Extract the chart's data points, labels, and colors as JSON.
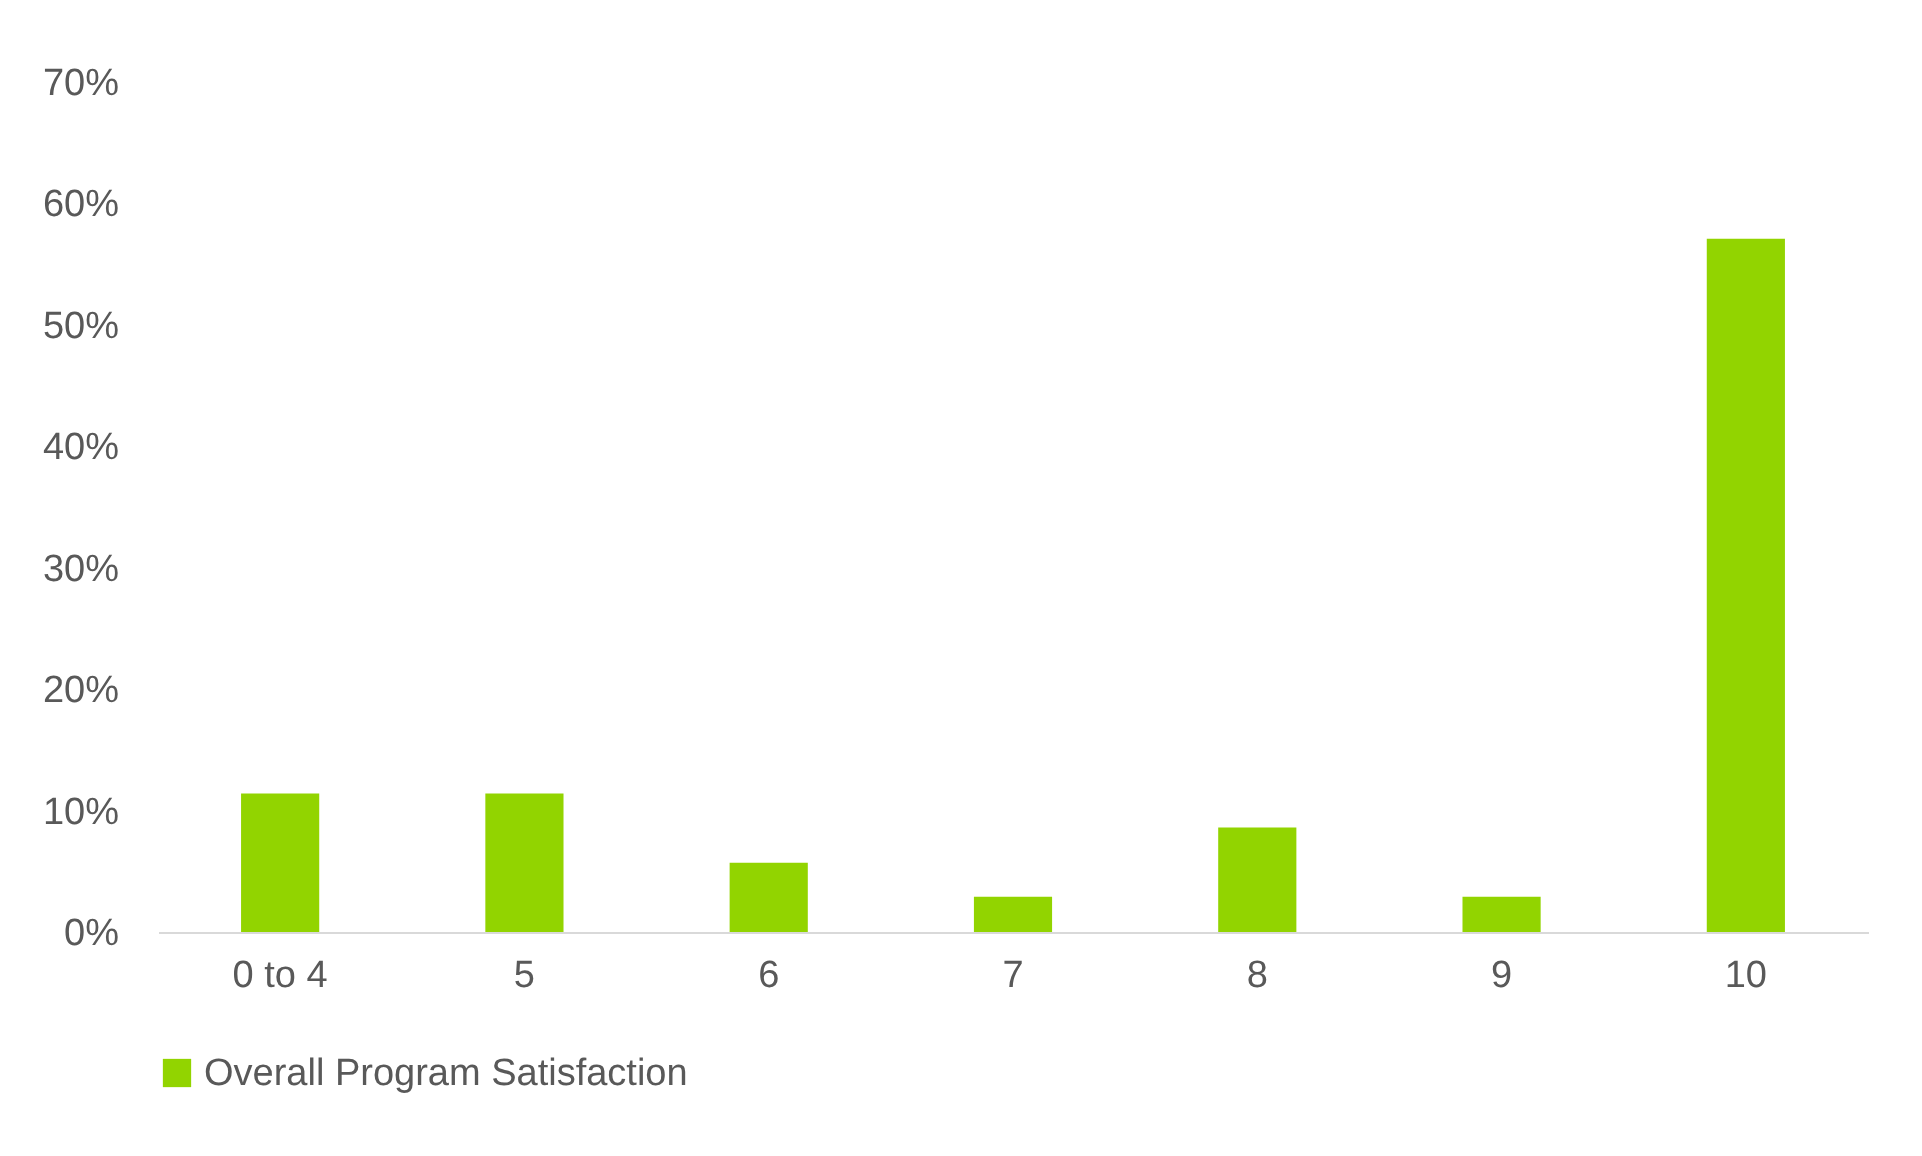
{
  "chart_data": {
    "type": "bar",
    "categories": [
      "0 to 4",
      "5",
      "6",
      "7",
      "8",
      "9",
      "10"
    ],
    "series": [
      {
        "name": "Overall Program Satisfaction",
        "color": "#92d400",
        "values": [
          11.4,
          11.4,
          5.7,
          2.9,
          8.6,
          2.9,
          57.1
        ]
      }
    ],
    "ylim": [
      0,
      70
    ],
    "yticks": [
      {
        "value": 0,
        "label": "0%"
      },
      {
        "value": 10,
        "label": "10%"
      },
      {
        "value": 20,
        "label": "20%"
      },
      {
        "value": 30,
        "label": "30%"
      },
      {
        "value": 40,
        "label": "40%"
      },
      {
        "value": 50,
        "label": "50%"
      },
      {
        "value": 60,
        "label": "60%"
      },
      {
        "value": 70,
        "label": "70%"
      }
    ],
    "grid": false,
    "legend": "bottom"
  }
}
